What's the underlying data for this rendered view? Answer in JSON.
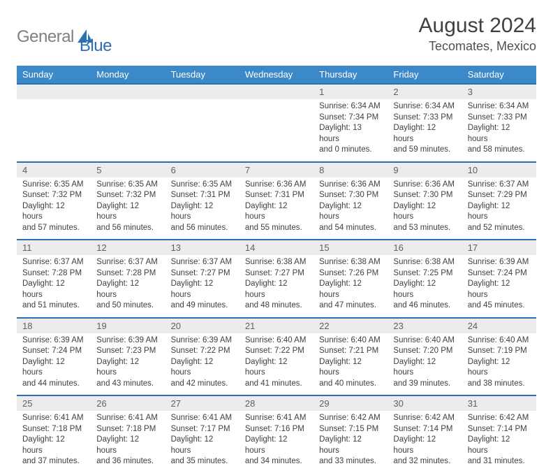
{
  "logo": {
    "part1": "General",
    "part2": "Blue"
  },
  "title": "August 2024",
  "location": "Tecomates, Mexico",
  "header_color": "#3b89c9",
  "divider_color": "#2d6fb5",
  "daynum_bg": "#ececec",
  "day_names": [
    "Sunday",
    "Monday",
    "Tuesday",
    "Wednesday",
    "Thursday",
    "Friday",
    "Saturday"
  ],
  "weeks": [
    {
      "nums": [
        "",
        "",
        "",
        "",
        "1",
        "2",
        "3"
      ],
      "cells": [
        {
          "sr": "",
          "ss": "",
          "dl1": "",
          "dl2": ""
        },
        {
          "sr": "",
          "ss": "",
          "dl1": "",
          "dl2": ""
        },
        {
          "sr": "",
          "ss": "",
          "dl1": "",
          "dl2": ""
        },
        {
          "sr": "",
          "ss": "",
          "dl1": "",
          "dl2": ""
        },
        {
          "sr": "Sunrise: 6:34 AM",
          "ss": "Sunset: 7:34 PM",
          "dl1": "Daylight: 13 hours",
          "dl2": "and 0 minutes."
        },
        {
          "sr": "Sunrise: 6:34 AM",
          "ss": "Sunset: 7:33 PM",
          "dl1": "Daylight: 12 hours",
          "dl2": "and 59 minutes."
        },
        {
          "sr": "Sunrise: 6:34 AM",
          "ss": "Sunset: 7:33 PM",
          "dl1": "Daylight: 12 hours",
          "dl2": "and 58 minutes."
        }
      ]
    },
    {
      "nums": [
        "4",
        "5",
        "6",
        "7",
        "8",
        "9",
        "10"
      ],
      "cells": [
        {
          "sr": "Sunrise: 6:35 AM",
          "ss": "Sunset: 7:32 PM",
          "dl1": "Daylight: 12 hours",
          "dl2": "and 57 minutes."
        },
        {
          "sr": "Sunrise: 6:35 AM",
          "ss": "Sunset: 7:32 PM",
          "dl1": "Daylight: 12 hours",
          "dl2": "and 56 minutes."
        },
        {
          "sr": "Sunrise: 6:35 AM",
          "ss": "Sunset: 7:31 PM",
          "dl1": "Daylight: 12 hours",
          "dl2": "and 56 minutes."
        },
        {
          "sr": "Sunrise: 6:36 AM",
          "ss": "Sunset: 7:31 PM",
          "dl1": "Daylight: 12 hours",
          "dl2": "and 55 minutes."
        },
        {
          "sr": "Sunrise: 6:36 AM",
          "ss": "Sunset: 7:30 PM",
          "dl1": "Daylight: 12 hours",
          "dl2": "and 54 minutes."
        },
        {
          "sr": "Sunrise: 6:36 AM",
          "ss": "Sunset: 7:30 PM",
          "dl1": "Daylight: 12 hours",
          "dl2": "and 53 minutes."
        },
        {
          "sr": "Sunrise: 6:37 AM",
          "ss": "Sunset: 7:29 PM",
          "dl1": "Daylight: 12 hours",
          "dl2": "and 52 minutes."
        }
      ]
    },
    {
      "nums": [
        "11",
        "12",
        "13",
        "14",
        "15",
        "16",
        "17"
      ],
      "cells": [
        {
          "sr": "Sunrise: 6:37 AM",
          "ss": "Sunset: 7:28 PM",
          "dl1": "Daylight: 12 hours",
          "dl2": "and 51 minutes."
        },
        {
          "sr": "Sunrise: 6:37 AM",
          "ss": "Sunset: 7:28 PM",
          "dl1": "Daylight: 12 hours",
          "dl2": "and 50 minutes."
        },
        {
          "sr": "Sunrise: 6:37 AM",
          "ss": "Sunset: 7:27 PM",
          "dl1": "Daylight: 12 hours",
          "dl2": "and 49 minutes."
        },
        {
          "sr": "Sunrise: 6:38 AM",
          "ss": "Sunset: 7:27 PM",
          "dl1": "Daylight: 12 hours",
          "dl2": "and 48 minutes."
        },
        {
          "sr": "Sunrise: 6:38 AM",
          "ss": "Sunset: 7:26 PM",
          "dl1": "Daylight: 12 hours",
          "dl2": "and 47 minutes."
        },
        {
          "sr": "Sunrise: 6:38 AM",
          "ss": "Sunset: 7:25 PM",
          "dl1": "Daylight: 12 hours",
          "dl2": "and 46 minutes."
        },
        {
          "sr": "Sunrise: 6:39 AM",
          "ss": "Sunset: 7:24 PM",
          "dl1": "Daylight: 12 hours",
          "dl2": "and 45 minutes."
        }
      ]
    },
    {
      "nums": [
        "18",
        "19",
        "20",
        "21",
        "22",
        "23",
        "24"
      ],
      "cells": [
        {
          "sr": "Sunrise: 6:39 AM",
          "ss": "Sunset: 7:24 PM",
          "dl1": "Daylight: 12 hours",
          "dl2": "and 44 minutes."
        },
        {
          "sr": "Sunrise: 6:39 AM",
          "ss": "Sunset: 7:23 PM",
          "dl1": "Daylight: 12 hours",
          "dl2": "and 43 minutes."
        },
        {
          "sr": "Sunrise: 6:39 AM",
          "ss": "Sunset: 7:22 PM",
          "dl1": "Daylight: 12 hours",
          "dl2": "and 42 minutes."
        },
        {
          "sr": "Sunrise: 6:40 AM",
          "ss": "Sunset: 7:22 PM",
          "dl1": "Daylight: 12 hours",
          "dl2": "and 41 minutes."
        },
        {
          "sr": "Sunrise: 6:40 AM",
          "ss": "Sunset: 7:21 PM",
          "dl1": "Daylight: 12 hours",
          "dl2": "and 40 minutes."
        },
        {
          "sr": "Sunrise: 6:40 AM",
          "ss": "Sunset: 7:20 PM",
          "dl1": "Daylight: 12 hours",
          "dl2": "and 39 minutes."
        },
        {
          "sr": "Sunrise: 6:40 AM",
          "ss": "Sunset: 7:19 PM",
          "dl1": "Daylight: 12 hours",
          "dl2": "and 38 minutes."
        }
      ]
    },
    {
      "nums": [
        "25",
        "26",
        "27",
        "28",
        "29",
        "30",
        "31"
      ],
      "cells": [
        {
          "sr": "Sunrise: 6:41 AM",
          "ss": "Sunset: 7:18 PM",
          "dl1": "Daylight: 12 hours",
          "dl2": "and 37 minutes."
        },
        {
          "sr": "Sunrise: 6:41 AM",
          "ss": "Sunset: 7:18 PM",
          "dl1": "Daylight: 12 hours",
          "dl2": "and 36 minutes."
        },
        {
          "sr": "Sunrise: 6:41 AM",
          "ss": "Sunset: 7:17 PM",
          "dl1": "Daylight: 12 hours",
          "dl2": "and 35 minutes."
        },
        {
          "sr": "Sunrise: 6:41 AM",
          "ss": "Sunset: 7:16 PM",
          "dl1": "Daylight: 12 hours",
          "dl2": "and 34 minutes."
        },
        {
          "sr": "Sunrise: 6:42 AM",
          "ss": "Sunset: 7:15 PM",
          "dl1": "Daylight: 12 hours",
          "dl2": "and 33 minutes."
        },
        {
          "sr": "Sunrise: 6:42 AM",
          "ss": "Sunset: 7:14 PM",
          "dl1": "Daylight: 12 hours",
          "dl2": "and 32 minutes."
        },
        {
          "sr": "Sunrise: 6:42 AM",
          "ss": "Sunset: 7:14 PM",
          "dl1": "Daylight: 12 hours",
          "dl2": "and 31 minutes."
        }
      ]
    }
  ]
}
